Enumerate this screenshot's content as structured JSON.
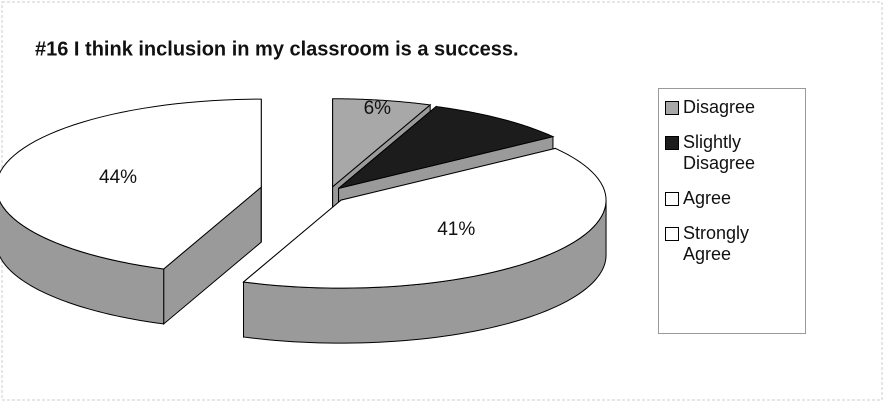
{
  "chart_data": {
    "type": "pie",
    "title": "#16 I think inclusion in my classroom is a success.",
    "categories": [
      "Disagree",
      "Slightly Disagree",
      "Agree",
      "Strongly Agree"
    ],
    "values": [
      6,
      9,
      41,
      44
    ],
    "value_labels": [
      "6%",
      null,
      "41%",
      "44%"
    ],
    "colors": [
      "#a8a8a8",
      "#1c1c1c",
      "#ffffff",
      "#ffffff"
    ],
    "legend": "right"
  }
}
